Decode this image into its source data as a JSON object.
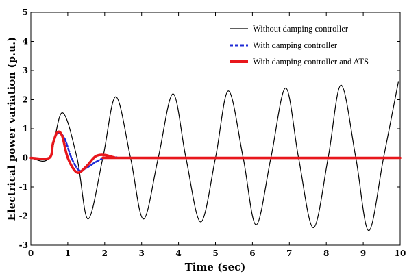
{
  "chart_data": {
    "type": "line",
    "xlabel": "Time (sec)",
    "ylabel": "Electrical power variation (p.u.)",
    "xlim": [
      0,
      10
    ],
    "ylim": [
      -3,
      5
    ],
    "xticks": [
      "0",
      "1",
      "2",
      "3",
      "4",
      "5",
      "6",
      "7",
      "8",
      "9",
      "10"
    ],
    "yticks": [
      "-3",
      "-2",
      "-1",
      "0",
      "1",
      "2",
      "3",
      "4",
      "5"
    ],
    "grid": false,
    "legend_position": "top-right",
    "series": [
      {
        "name": "Without damping controller",
        "color": "#000000",
        "style": "solid",
        "x": [
          0,
          0.5,
          0.85,
          1.25,
          1.55,
          1.95,
          2.3,
          2.7,
          3.05,
          3.45,
          3.85,
          4.2,
          4.6,
          5.0,
          5.35,
          5.75,
          6.1,
          6.5,
          6.9,
          7.25,
          7.65,
          8.05,
          8.4,
          8.8,
          9.15,
          9.55,
          9.95
        ],
        "y": [
          0,
          0,
          1.55,
          0,
          -2.1,
          0,
          2.1,
          0,
          -2.1,
          0,
          2.2,
          0,
          -2.2,
          0,
          2.3,
          0,
          -2.3,
          0,
          2.4,
          0,
          -2.4,
          0,
          2.5,
          0,
          -2.5,
          0,
          2.6
        ]
      },
      {
        "name": "With damping controller",
        "color": "#1f2bd6",
        "style": "dashed",
        "x": [
          0,
          0.5,
          0.6,
          0.72,
          0.9,
          1.1,
          1.3,
          1.5,
          1.75,
          2.0,
          2.3,
          3.0,
          10
        ],
        "y": [
          0,
          0,
          0.5,
          0.85,
          0.7,
          0.0,
          -0.42,
          -0.35,
          -0.15,
          0.0,
          0.02,
          0,
          0
        ]
      },
      {
        "name": "With damping controller and ATS",
        "color": "#e8171c",
        "style": "solid",
        "x": [
          0,
          0.5,
          0.6,
          0.72,
          0.85,
          1.0,
          1.25,
          1.5,
          1.75,
          2.0,
          2.25,
          2.6,
          10
        ],
        "y": [
          0,
          0,
          0.5,
          0.88,
          0.75,
          0.0,
          -0.5,
          -0.3,
          0.05,
          0.1,
          0.02,
          0,
          0
        ]
      }
    ]
  }
}
